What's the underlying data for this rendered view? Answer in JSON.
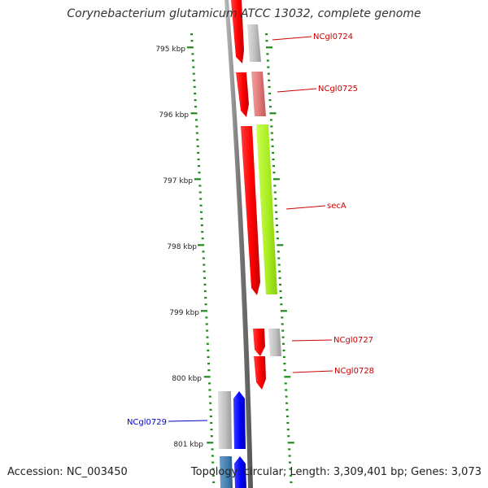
{
  "title": "Corynebacterium glutamicum ATCC 13032, complete genome",
  "accession_text": "Accession: NC_003450",
  "topology_text": "Topology: circular; Length: 3,309,401 bp; Genes: 3,073",
  "colors": {
    "backbone": "#808080",
    "tick": "#1e8a1e",
    "ruler_label": "#222222",
    "forward_label": "#cc0000",
    "reverse_label": "#0000cc"
  },
  "ruler": {
    "unit": "kbp",
    "labels": [
      "795 kbp",
      "796 kbp",
      "797 kbp",
      "798 kbp",
      "799 kbp",
      "800 kbp",
      "801 kbp"
    ]
  },
  "genes": [
    {
      "label": "NCgl0724",
      "strand": "forward",
      "colors": [
        "#ff0000",
        "#c0c0c0"
      ]
    },
    {
      "label": "NCgl0725",
      "strand": "forward",
      "colors": [
        "#ff0000",
        "#e08080"
      ]
    },
    {
      "label": "secA",
      "strand": "forward",
      "colors": [
        "#ff0000",
        "#aaee22"
      ]
    },
    {
      "label": "NCgl0727",
      "strand": "forward",
      "colors": [
        "#ff0000",
        "#c0c0c0"
      ]
    },
    {
      "label": "NCgl0728",
      "strand": "forward",
      "colors": [
        "#ff0000"
      ]
    },
    {
      "label": "NCgl0729",
      "strand": "reverse",
      "colors": [
        "#0000ff",
        "#c0c0c0"
      ]
    }
  ]
}
